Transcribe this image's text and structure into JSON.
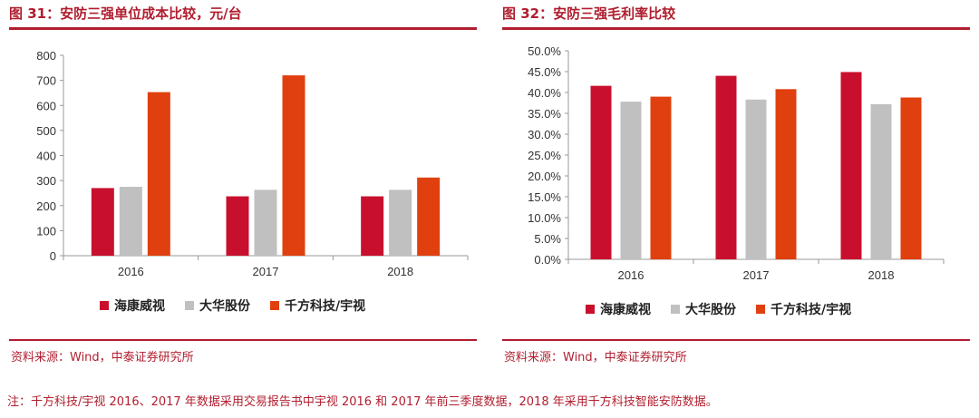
{
  "colors": {
    "accent": "#b01e2f",
    "hikvision": "#c8102e",
    "dahua": "#c0c0c0",
    "qianfang": "#e0400f"
  },
  "left": {
    "title": "图 31：安防三强单位成本比较，元/台",
    "source": "资料来源：Wind，中泰证券研究所"
  },
  "right": {
    "title": "图 32：安防三强毛利率比较",
    "source": "资料来源：Wind，中泰证券研究所"
  },
  "note": "注：千方科技/宇视 2016、2017 年数据采用交易报告书中宇视 2016 和 2017 年前三季度数据，2018 年采用千方科技智能安防数据。",
  "chart_data": [
    {
      "type": "bar",
      "title": "图 31：安防三强单位成本比较，元/台",
      "categories": [
        "2016",
        "2017",
        "2018"
      ],
      "ylim": [
        0,
        800
      ],
      "yticks": [
        "0",
        "100",
        "200",
        "300",
        "400",
        "500",
        "600",
        "700",
        "800"
      ],
      "yticks_values": [
        0,
        100,
        200,
        300,
        400,
        500,
        600,
        700,
        800
      ],
      "grid": false,
      "legend_position": "bottom",
      "series": [
        {
          "name": "海康威视",
          "color": "#c8102e",
          "values": [
            270,
            237,
            237
          ]
        },
        {
          "name": "大华股份",
          "color": "#c0c0c0",
          "values": [
            275,
            263,
            263
          ]
        },
        {
          "name": "千方科技/宇视",
          "color": "#e0400f",
          "values": [
            653,
            720,
            312
          ]
        }
      ]
    },
    {
      "type": "bar",
      "title": "图 32：安防三强毛利率比较",
      "categories": [
        "2016",
        "2017",
        "2018"
      ],
      "ylim": [
        0,
        50
      ],
      "yticks": [
        "0.0%",
        "5.0%",
        "10.0%",
        "15.0%",
        "20.0%",
        "25.0%",
        "30.0%",
        "35.0%",
        "40.0%",
        "45.0%",
        "50.0%"
      ],
      "yticks_values": [
        0,
        5,
        10,
        15,
        20,
        25,
        30,
        35,
        40,
        45,
        50
      ],
      "grid": false,
      "legend_position": "bottom",
      "series": [
        {
          "name": "海康威视",
          "color": "#c8102e",
          "values": [
            41.6,
            44.0,
            44.9
          ]
        },
        {
          "name": "大华股份",
          "color": "#c0c0c0",
          "values": [
            37.8,
            38.3,
            37.2
          ]
        },
        {
          "name": "千方科技/宇视",
          "color": "#e0400f",
          "values": [
            39.0,
            40.8,
            38.8
          ]
        }
      ]
    }
  ]
}
